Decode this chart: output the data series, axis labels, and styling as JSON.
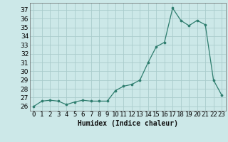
{
  "x": [
    0,
    1,
    2,
    3,
    4,
    5,
    6,
    7,
    8,
    9,
    10,
    11,
    12,
    13,
    14,
    15,
    16,
    17,
    18,
    19,
    20,
    21,
    22,
    23
  ],
  "y": [
    26,
    26.6,
    26.7,
    26.6,
    26.2,
    26.5,
    26.7,
    26.6,
    26.6,
    26.6,
    27.8,
    28.3,
    28.5,
    29.0,
    31.0,
    32.8,
    33.3,
    37.2,
    35.8,
    35.2,
    35.8,
    35.3,
    29.0,
    27.3
  ],
  "xlabel": "Humidex (Indice chaleur)",
  "ylim": [
    25.5,
    37.8
  ],
  "xlim": [
    -0.5,
    23.5
  ],
  "yticks": [
    26,
    27,
    28,
    29,
    30,
    31,
    32,
    33,
    34,
    35,
    36,
    37
  ],
  "xtick_labels": [
    "0",
    "1",
    "2",
    "3",
    "4",
    "5",
    "6",
    "7",
    "8",
    "9",
    "10",
    "11",
    "12",
    "13",
    "14",
    "15",
    "16",
    "17",
    "18",
    "19",
    "20",
    "21",
    "22",
    "23"
  ],
  "line_color": "#2e7d6e",
  "marker_color": "#2e7d6e",
  "bg_color": "#cce8e8",
  "grid_color": "#aacccc",
  "label_fontsize": 7,
  "tick_fontsize": 6.5
}
